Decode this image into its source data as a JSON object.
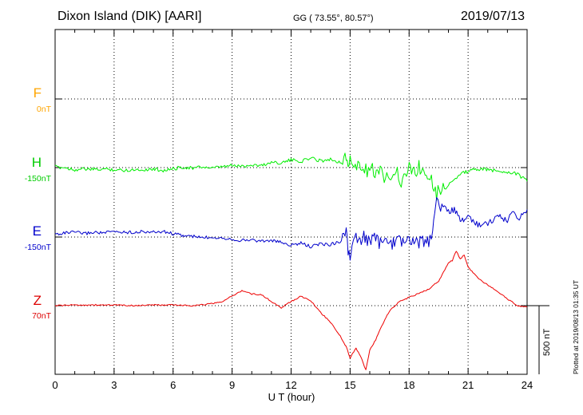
{
  "header": {
    "station": "Dixon Island (DIK)  [AARI]",
    "coords": "GG ( 73.55°,  80.57°)",
    "date": "2019/07/13"
  },
  "components": [
    {
      "letter": "F",
      "baseline": "0nT",
      "color": "#ffa500"
    },
    {
      "letter": "H",
      "baseline": "-150nT",
      "color": "#00cc00"
    },
    {
      "letter": "E",
      "baseline": "-150nT",
      "color": "#0000cc"
    },
    {
      "letter": "Z",
      "baseline": "70nT",
      "color": "#dd0000"
    }
  ],
  "scale_label": "500 nT",
  "plotted_note": "Plotted at 2019/08/13 01:35 UT",
  "chart_data": {
    "type": "line",
    "xlabel": "U T (hour)",
    "xlim": [
      0,
      24
    ],
    "xticks": [
      0,
      3,
      6,
      9,
      12,
      15,
      18,
      21,
      24
    ],
    "scale_bar_nT": 500,
    "series": [
      {
        "name": "F",
        "baseline_nT": 0,
        "color": "#ffa500",
        "x": [],
        "y": []
      },
      {
        "name": "H",
        "baseline_nT": -150,
        "color": "#00ee00",
        "x": [
          0,
          0.5,
          1,
          1.5,
          2,
          2.5,
          3,
          3.5,
          4,
          4.5,
          5,
          5.5,
          6,
          6.5,
          7,
          7.5,
          8,
          8.5,
          9,
          9.5,
          10,
          10.5,
          11,
          11.5,
          12,
          12.5,
          13,
          13.5,
          14,
          14.5,
          14.8,
          14.9,
          15,
          15.2,
          15.4,
          15.6,
          15.8,
          16,
          16.2,
          16.4,
          16.6,
          16.8,
          17,
          17.2,
          17.4,
          17.6,
          17.8,
          18,
          18.5,
          19,
          19.2,
          19.4,
          19.6,
          19.8,
          20,
          20.3,
          20.6,
          21,
          21.5,
          22,
          22.5,
          23,
          23.5,
          24
        ],
        "y": [
          5,
          0,
          -15,
          -10,
          -15,
          -10,
          -15,
          -20,
          -15,
          -15,
          -10,
          -20,
          -10,
          5,
          -5,
          5,
          -5,
          5,
          15,
          10,
          20,
          15,
          40,
          35,
          55,
          45,
          70,
          50,
          60,
          40,
          60,
          20,
          80,
          -5,
          10,
          -25,
          0,
          -50,
          -15,
          -75,
          -10,
          -90,
          -30,
          -40,
          -15,
          -120,
          -60,
          -10,
          -5,
          -30,
          -100,
          -185,
          -150,
          -160,
          -120,
          -90,
          -50,
          -25,
          -10,
          -15,
          -25,
          -30,
          -45,
          -100
        ]
      },
      {
        "name": "E",
        "baseline_nT": -150,
        "color": "#0000cc",
        "x": [
          0,
          0.5,
          1,
          1.5,
          2,
          2.5,
          3,
          3.5,
          4,
          4.5,
          5,
          5.5,
          6,
          6.5,
          7,
          7.5,
          8,
          8.5,
          9,
          9.5,
          10,
          10.5,
          11,
          11.5,
          12,
          12.5,
          13,
          13.5,
          14,
          14.5,
          14.8,
          14.9,
          15,
          15.1,
          15.3,
          15.5,
          15.7,
          16,
          16.3,
          16.6,
          16.9,
          17.2,
          17.5,
          17.8,
          18,
          18.5,
          19,
          19.2,
          19.3,
          19.4,
          19.6,
          19.8,
          20,
          20.3,
          20.6,
          21,
          21.5,
          22,
          22.5,
          23,
          23.3,
          23.6,
          24
        ],
        "y": [
          20,
          30,
          35,
          25,
          35,
          30,
          40,
          35,
          35,
          40,
          35,
          40,
          25,
          10,
          5,
          -5,
          0,
          -5,
          -15,
          -25,
          -20,
          -30,
          -25,
          -40,
          -60,
          -45,
          -70,
          -50,
          -55,
          -30,
          30,
          -90,
          -170,
          -80,
          -10,
          -45,
          0,
          -30,
          -10,
          -60,
          -20,
          -50,
          -15,
          -40,
          -25,
          -40,
          -30,
          50,
          180,
          300,
          210,
          250,
          180,
          200,
          120,
          150,
          90,
          100,
          150,
          120,
          190,
          140,
          200
        ]
      },
      {
        "name": "Z",
        "baseline_nT": 70,
        "color": "#ee0000",
        "x": [
          0,
          1,
          2,
          3,
          4,
          5,
          6,
          7,
          8,
          8.5,
          9,
          9.5,
          10,
          10.5,
          11,
          11.5,
          12,
          12.5,
          13,
          13.5,
          14,
          14.5,
          14.8,
          15,
          15.3,
          15.6,
          15.8,
          16,
          16.3,
          16.6,
          17,
          17.5,
          18,
          18.5,
          19,
          19.5,
          20,
          20.2,
          20.4,
          20.6,
          20.8,
          21,
          21.5,
          22,
          22.5,
          23,
          23.5,
          24
        ],
        "y": [
          0,
          5,
          5,
          5,
          0,
          5,
          5,
          0,
          15,
          30,
          70,
          110,
          85,
          80,
          30,
          -15,
          30,
          70,
          35,
          -50,
          -120,
          -220,
          -300,
          -380,
          -310,
          -390,
          -470,
          -320,
          -250,
          -150,
          -40,
          30,
          60,
          90,
          120,
          180,
          310,
          330,
          400,
          340,
          370,
          280,
          200,
          150,
          100,
          50,
          0,
          -10
        ]
      }
    ]
  }
}
